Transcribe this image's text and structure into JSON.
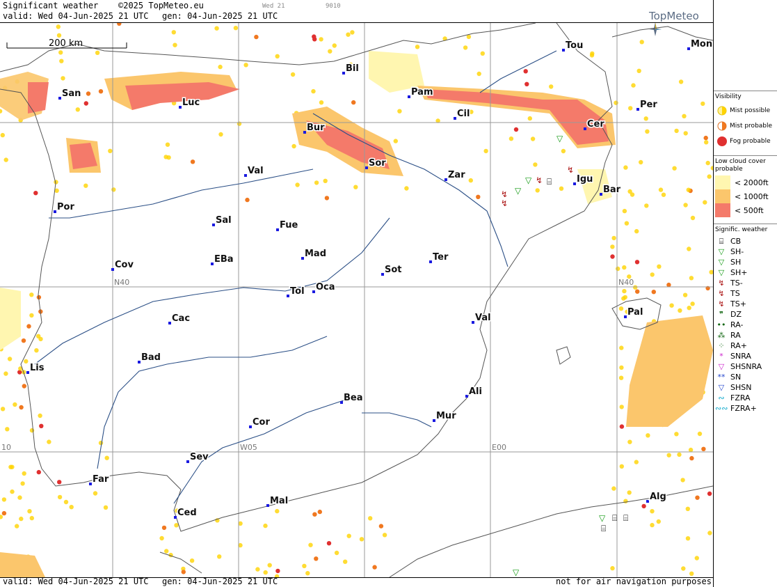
{
  "header": {
    "title": "Significant weather",
    "copyright": "©2025 TopMeteo.eu",
    "valid": "valid:  Wed  04-Jun-2025  21 UTC",
    "generated": "gen: 04-Jun-2025 21 UTC",
    "small_day": "Wed 21",
    "small_code": "9010",
    "logo": "TopMeteo"
  },
  "footer": {
    "valid": "valid:  Wed  04-Jun-2025  21 UTC",
    "generated": "gen: 04-Jun-2025 21 UTC",
    "note": "not for air navigation purposes"
  },
  "map": {
    "scale_label": "200 km",
    "grid_labels": [
      "N40",
      "N40",
      "W05",
      "E00",
      "10"
    ],
    "colors": {
      "land": "#ffffff",
      "sea": "#ffffff",
      "coast": "#555555",
      "river": "#2b4f86",
      "grid": "#999999",
      "city": "#1a1ae0",
      "mist": "#ffd300",
      "mist_possible": "#fff199",
      "fog": "#e03030",
      "lcc_2000": "#fff6b0",
      "lcc_1000": "#fbc66c",
      "lcc_500": "#f47a6a"
    },
    "cities": [
      {
        "name": "San"
      },
      {
        "name": "Luc"
      },
      {
        "name": "Bil"
      },
      {
        "name": "Pam"
      },
      {
        "name": "Cil"
      },
      {
        "name": "Tou"
      },
      {
        "name": "Mon"
      },
      {
        "name": "Per"
      },
      {
        "name": "Cer"
      },
      {
        "name": "Bur"
      },
      {
        "name": "Sor"
      },
      {
        "name": "Val"
      },
      {
        "name": "Zar"
      },
      {
        "name": "Igu"
      },
      {
        "name": "Bar"
      },
      {
        "name": "Por"
      },
      {
        "name": "Sal"
      },
      {
        "name": "Fue"
      },
      {
        "name": "Mad"
      },
      {
        "name": "EBa"
      },
      {
        "name": "Cov"
      },
      {
        "name": "Ter"
      },
      {
        "name": "Sot"
      },
      {
        "name": "Tol"
      },
      {
        "name": "Oca"
      },
      {
        "name": "Pal"
      },
      {
        "name": "Cac"
      },
      {
        "name": "Val"
      },
      {
        "name": "Bad"
      },
      {
        "name": "Lis"
      },
      {
        "name": "Ali"
      },
      {
        "name": "Bea"
      },
      {
        "name": "Mur"
      },
      {
        "name": "Cor"
      },
      {
        "name": "Sev"
      },
      {
        "name": "Far"
      },
      {
        "name": "Alg"
      },
      {
        "name": "Mal"
      },
      {
        "name": "Ced"
      }
    ]
  },
  "legend": {
    "visibility": {
      "title": "Visibility",
      "items": [
        {
          "label": "Mist possible",
          "icon": "mist-possible-icon"
        },
        {
          "label": "Mist probable",
          "icon": "mist-probable-icon"
        },
        {
          "label": "Fog probable",
          "icon": "fog-probable-icon"
        }
      ]
    },
    "low_cloud": {
      "title": "Low cloud cover probable",
      "items": [
        {
          "label": "< 2000ft"
        },
        {
          "label": "< 1000ft"
        },
        {
          "label": "<   500ft"
        }
      ]
    },
    "sig_weather": {
      "title": "Signific. weather",
      "items": [
        {
          "code": "CB",
          "glyph": "⌸",
          "color": "#000000"
        },
        {
          "code": "SH-",
          "glyph": "▽",
          "color": "#119911"
        },
        {
          "code": "SH",
          "glyph": "▽",
          "color": "#119911"
        },
        {
          "code": "SH+",
          "glyph": "▽",
          "color": "#119911"
        },
        {
          "code": "TS-",
          "glyph": "↯",
          "color": "#aa1111"
        },
        {
          "code": "TS",
          "glyph": "↯",
          "color": "#aa1111"
        },
        {
          "code": "TS+",
          "glyph": "↯",
          "color": "#aa1111"
        },
        {
          "code": "DZ",
          "glyph": "❞",
          "color": "#116611"
        },
        {
          "code": "RA-",
          "glyph": "••",
          "color": "#116611"
        },
        {
          "code": "RA",
          "glyph": "⁂",
          "color": "#116611"
        },
        {
          "code": "RA+",
          "glyph": "⁘",
          "color": "#116611"
        },
        {
          "code": "SNRA",
          "glyph": "*",
          "color": "#cc22cc"
        },
        {
          "code": "SHSNRA",
          "glyph": "▽",
          "color": "#cc22cc"
        },
        {
          "code": "SN",
          "glyph": "**",
          "color": "#2244cc"
        },
        {
          "code": "SHSN",
          "glyph": "▽",
          "color": "#2244cc"
        },
        {
          "code": "FZRA",
          "glyph": "∾",
          "color": "#11aacc"
        },
        {
          "code": "FZRA+",
          "glyph": "∾∾",
          "color": "#11aacc"
        }
      ]
    }
  }
}
